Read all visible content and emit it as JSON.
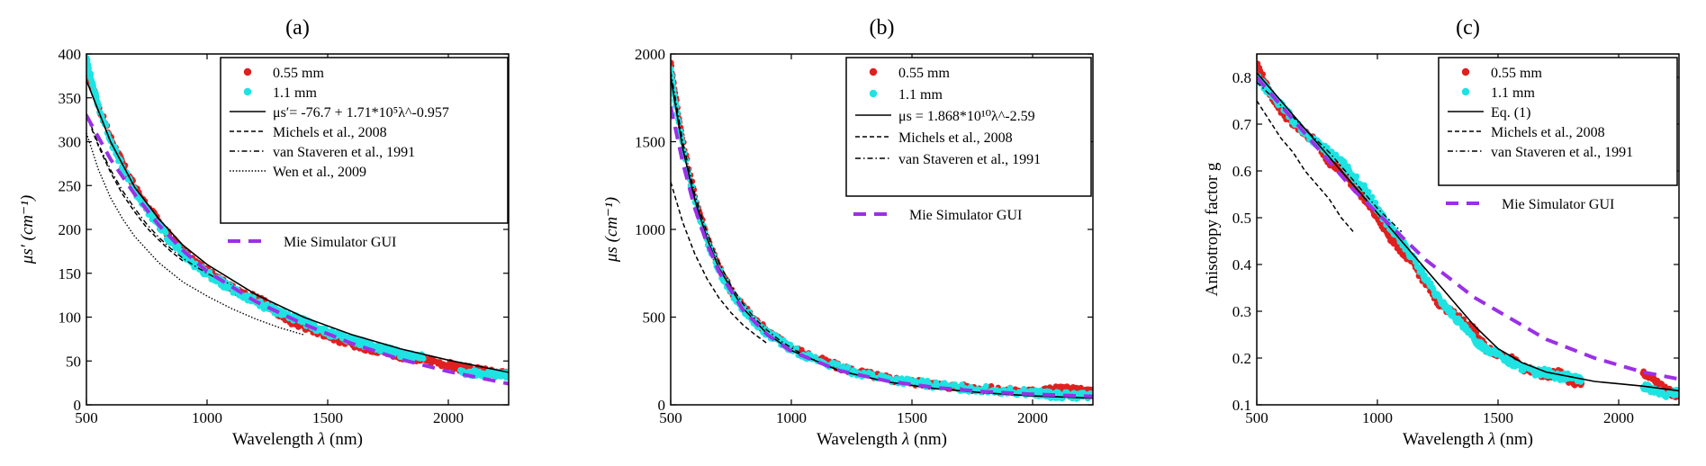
{
  "chart_data": [
    {
      "type": "line",
      "panel_label": "(a)",
      "xlabel": "Wavelength",
      "xlabel_symbol": "λ",
      "xlabel_unit": "(nm)",
      "ylabel": "μs′ (cm⁻¹)",
      "xlim": [
        500,
        2250
      ],
      "ylim": [
        0,
        400
      ],
      "xticks": [
        500,
        1000,
        1500,
        2000
      ],
      "yticks": [
        0,
        50,
        100,
        150,
        200,
        250,
        300,
        350,
        400
      ],
      "legend_position": "top-right",
      "grid": false,
      "series": [
        {
          "name": "0.55 mm",
          "style": "dots",
          "color": "#e02020",
          "x": [
            500,
            520,
            550,
            600,
            650,
            700,
            750,
            800,
            850,
            900,
            950,
            1000,
            1050,
            1100,
            1150,
            1200,
            1250,
            1300,
            1350,
            1400,
            1450,
            1500,
            1550,
            1600,
            1650,
            1700,
            1750,
            1800,
            1850,
            1900,
            2000,
            2050,
            2100,
            2150,
            2200,
            2250
          ],
          "y": [
            385,
            370,
            340,
            305,
            275,
            248,
            225,
            210,
            190,
            175,
            162,
            152,
            143,
            133,
            126,
            122,
            114,
            104,
            95,
            90,
            85,
            80,
            74,
            70,
            66,
            63,
            60,
            56,
            54,
            52,
            46,
            42,
            40,
            38,
            36,
            34
          ]
        },
        {
          "name": "1.1 mm",
          "style": "dots",
          "color": "#1ee3e3",
          "x": [
            500,
            520,
            550,
            600,
            650,
            700,
            750,
            800,
            850,
            900,
            950,
            1000,
            1050,
            1100,
            1150,
            1200,
            1250,
            1300,
            1350,
            1400,
            1450,
            1500,
            1550,
            1600,
            1650,
            1700,
            1750,
            1800,
            1850,
            1900,
            2050,
            2100,
            2150,
            2200,
            2250
          ],
          "y": [
            395,
            372,
            340,
            302,
            270,
            244,
            222,
            205,
            186,
            172,
            160,
            150,
            141,
            132,
            124,
            118,
            111,
            106,
            100,
            95,
            88,
            82,
            78,
            74,
            70,
            66,
            63,
            58,
            56,
            55,
            38,
            36,
            35,
            34,
            34
          ]
        },
        {
          "name": "μs′= -76.7 + 1.71*10⁵λ^-0.957",
          "style": "solid",
          "color": "#000000",
          "x": [
            500,
            600,
            700,
            800,
            900,
            1000,
            1200,
            1400,
            1600,
            1800,
            2000,
            2250
          ],
          "y": [
            370,
            300,
            248,
            212,
            182,
            160,
            126,
            100,
            80,
            64,
            51,
            37
          ]
        },
        {
          "name": "Michels et al., 2008",
          "style": "dashed",
          "color": "#000000",
          "x": [
            500,
            550,
            600,
            650,
            700,
            750,
            800,
            850,
            900
          ],
          "y": [
            330,
            295,
            265,
            240,
            220,
            202,
            188,
            175,
            164
          ]
        },
        {
          "name": "van Staveren et al., 1991",
          "style": "dashdot",
          "color": "#000000",
          "x": [
            500,
            550,
            600,
            650,
            700,
            750,
            800,
            850,
            900,
            950,
            1000,
            1050,
            1100
          ],
          "y": [
            332,
            297,
            268,
            244,
            224,
            206,
            191,
            178,
            167,
            158,
            150,
            143,
            137
          ]
        },
        {
          "name": "Wen et al., 2009",
          "style": "dotted",
          "color": "#000000",
          "x": [
            500,
            550,
            600,
            650,
            700,
            800,
            900,
            1000,
            1100,
            1200,
            1300,
            1400
          ],
          "y": [
            310,
            268,
            236,
            212,
            192,
            162,
            140,
            124,
            110,
            98,
            88,
            80
          ]
        },
        {
          "name": "Mie Simulator GUI",
          "style": "thickdash",
          "color": "#9b30e6",
          "x": [
            500,
            600,
            700,
            800,
            900,
            1000,
            1200,
            1400,
            1600,
            1800,
            2000,
            2250
          ],
          "y": [
            330,
            280,
            240,
            205,
            176,
            152,
            118,
            92,
            70,
            52,
            38,
            24
          ]
        }
      ]
    },
    {
      "type": "line",
      "panel_label": "(b)",
      "xlabel": "Wavelength",
      "xlabel_symbol": "λ",
      "xlabel_unit": "(nm)",
      "ylabel": "μs (cm⁻¹)",
      "xlim": [
        500,
        2250
      ],
      "ylim": [
        0,
        2000
      ],
      "xticks": [
        500,
        1000,
        1500,
        2000
      ],
      "yticks": [
        0,
        500,
        1000,
        1500,
        2000
      ],
      "legend_position": "top-right",
      "grid": false,
      "series": [
        {
          "name": "0.55 mm",
          "style": "dots",
          "color": "#e02020",
          "x": [
            500,
            520,
            550,
            600,
            650,
            700,
            750,
            800,
            850,
            900,
            950,
            1000,
            1100,
            1200,
            1300,
            1400,
            1500,
            1600,
            1700,
            1800,
            1900,
            2000,
            2050,
            2100,
            2150,
            2200,
            2250
          ],
          "y": [
            1950,
            1760,
            1500,
            1190,
            960,
            780,
            650,
            560,
            480,
            420,
            370,
            325,
            265,
            215,
            180,
            150,
            130,
            115,
            100,
            90,
            80,
            75,
            80,
            90,
            85,
            80,
            75
          ]
        },
        {
          "name": "1.1 mm",
          "style": "dots",
          "color": "#1ee3e3",
          "x": [
            500,
            520,
            550,
            600,
            650,
            700,
            750,
            800,
            850,
            900,
            950,
            1000,
            1100,
            1200,
            1300,
            1400,
            1500,
            1600,
            1700,
            1800,
            1900,
            2000,
            2050,
            2100,
            2150,
            2200,
            2250
          ],
          "y": [
            1920,
            1720,
            1470,
            1160,
            940,
            770,
            640,
            550,
            470,
            410,
            365,
            320,
            258,
            210,
            176,
            148,
            128,
            112,
            98,
            88,
            78,
            70,
            60,
            55,
            52,
            50,
            48
          ]
        },
        {
          "name": "μs = 1.868*10¹⁰λ^-2.59",
          "style": "solid",
          "color": "#000000",
          "x": [
            500,
            550,
            600,
            650,
            700,
            800,
            900,
            1000,
            1200,
            1400,
            1600,
            1800,
            2000,
            2250
          ],
          "y": [
            1870,
            1460,
            1170,
            950,
            780,
            550,
            405,
            310,
            194,
            130,
            92,
            68,
            51,
            38
          ]
        },
        {
          "name": "Michels et al., 2008",
          "style": "dashed",
          "color": "#000000",
          "x": [
            500,
            550,
            600,
            650,
            700,
            750,
            800,
            850,
            900
          ],
          "y": [
            1270,
            1040,
            860,
            720,
            610,
            525,
            455,
            400,
            350
          ]
        },
        {
          "name": "van Staveren et al., 1991",
          "style": "dashdot",
          "color": "#000000",
          "x": [
            500,
            550,
            600,
            650,
            700,
            750,
            800,
            850,
            900,
            950,
            1000,
            1050,
            1100
          ],
          "y": [
            1900,
            1500,
            1200,
            980,
            810,
            680,
            575,
            490,
            425,
            370,
            325,
            285,
            255
          ]
        },
        {
          "name": "Mie Simulator GUI",
          "style": "thickdash",
          "color": "#9b30e6",
          "x": [
            500,
            550,
            600,
            650,
            700,
            800,
            900,
            1000,
            1200,
            1400,
            1600,
            1800,
            2000,
            2250
          ],
          "y": [
            1700,
            1380,
            1120,
            920,
            760,
            540,
            400,
            305,
            195,
            135,
            98,
            75,
            60,
            48
          ]
        }
      ]
    },
    {
      "type": "line",
      "panel_label": "(c)",
      "xlabel": "Wavelength",
      "xlabel_symbol": "λ",
      "xlabel_unit": "(nm)",
      "ylabel": "Anisotropy factor g",
      "xlim": [
        500,
        2250
      ],
      "ylim": [
        0.1,
        0.85
      ],
      "xticks": [
        500,
        1000,
        1500,
        2000
      ],
      "yticks": [
        0.1,
        0.2,
        0.3,
        0.4,
        0.5,
        0.6,
        0.7,
        0.8
      ],
      "legend_position": "top-right",
      "grid": false,
      "series": [
        {
          "name": "0.55 mm",
          "style": "dots",
          "color": "#e02020",
          "x": [
            500,
            550,
            600,
            650,
            700,
            750,
            800,
            850,
            900,
            950,
            1000,
            1050,
            1100,
            1150,
            1200,
            1250,
            1300,
            1350,
            1400,
            1450,
            1500,
            1550,
            1600,
            1650,
            1700,
            1750,
            1800,
            1850,
            2100,
            2150,
            2200,
            2250
          ],
          "y": [
            0.83,
            0.77,
            0.73,
            0.7,
            0.68,
            0.66,
            0.62,
            0.6,
            0.57,
            0.54,
            0.5,
            0.46,
            0.43,
            0.4,
            0.36,
            0.32,
            0.3,
            0.28,
            0.26,
            0.22,
            0.21,
            0.2,
            0.18,
            0.17,
            0.16,
            0.17,
            0.15,
            0.14,
            0.17,
            0.15,
            0.13,
            0.12
          ]
        },
        {
          "name": "1.1 mm",
          "style": "dots",
          "color": "#1ee3e3",
          "x": [
            500,
            550,
            600,
            650,
            700,
            750,
            800,
            850,
            900,
            950,
            1000,
            1050,
            1100,
            1150,
            1200,
            1250,
            1300,
            1350,
            1400,
            1450,
            1500,
            1550,
            1600,
            1650,
            1700,
            1750,
            1800,
            1850,
            2100,
            2150,
            2200,
            2250
          ],
          "y": [
            0.8,
            0.77,
            0.74,
            0.71,
            0.68,
            0.66,
            0.64,
            0.62,
            0.59,
            0.56,
            0.52,
            0.48,
            0.45,
            0.41,
            0.37,
            0.33,
            0.3,
            0.27,
            0.24,
            0.22,
            0.21,
            0.19,
            0.18,
            0.17,
            0.17,
            0.16,
            0.16,
            0.15,
            0.14,
            0.13,
            0.12,
            0.13
          ]
        },
        {
          "name": "Eq. (1)",
          "style": "solid",
          "color": "#000000",
          "x": [
            500,
            600,
            700,
            800,
            900,
            1000,
            1100,
            1200,
            1300,
            1400,
            1500,
            1600,
            1700,
            1800,
            1900,
            2000,
            2100,
            2250
          ],
          "y": [
            0.81,
            0.75,
            0.69,
            0.63,
            0.57,
            0.51,
            0.45,
            0.39,
            0.33,
            0.27,
            0.22,
            0.19,
            0.17,
            0.16,
            0.15,
            0.145,
            0.14,
            0.13
          ]
        },
        {
          "name": "Michels et al., 2008",
          "style": "dashed",
          "color": "#000000",
          "x": [
            500,
            550,
            600,
            650,
            700,
            750,
            800,
            850,
            900
          ],
          "y": [
            0.75,
            0.71,
            0.67,
            0.64,
            0.6,
            0.57,
            0.54,
            0.5,
            0.47
          ]
        },
        {
          "name": "van Staveren et al., 1991",
          "style": "dashdot",
          "color": "#000000",
          "x": [
            500,
            600,
            700,
            800,
            900,
            1000,
            1100
          ],
          "y": [
            0.79,
            0.74,
            0.69,
            0.64,
            0.58,
            0.52,
            0.47
          ]
        },
        {
          "name": "Mie Simulator GUI",
          "style": "thickdash",
          "color": "#9b30e6",
          "x": [
            500,
            600,
            700,
            800,
            900,
            1000,
            1100,
            1200,
            1300,
            1400,
            1500,
            1600,
            1700,
            1800,
            1900,
            2000,
            2100,
            2250
          ],
          "y": [
            0.8,
            0.74,
            0.68,
            0.62,
            0.56,
            0.51,
            0.46,
            0.41,
            0.37,
            0.33,
            0.3,
            0.27,
            0.24,
            0.22,
            0.2,
            0.185,
            0.17,
            0.155
          ]
        }
      ]
    }
  ]
}
